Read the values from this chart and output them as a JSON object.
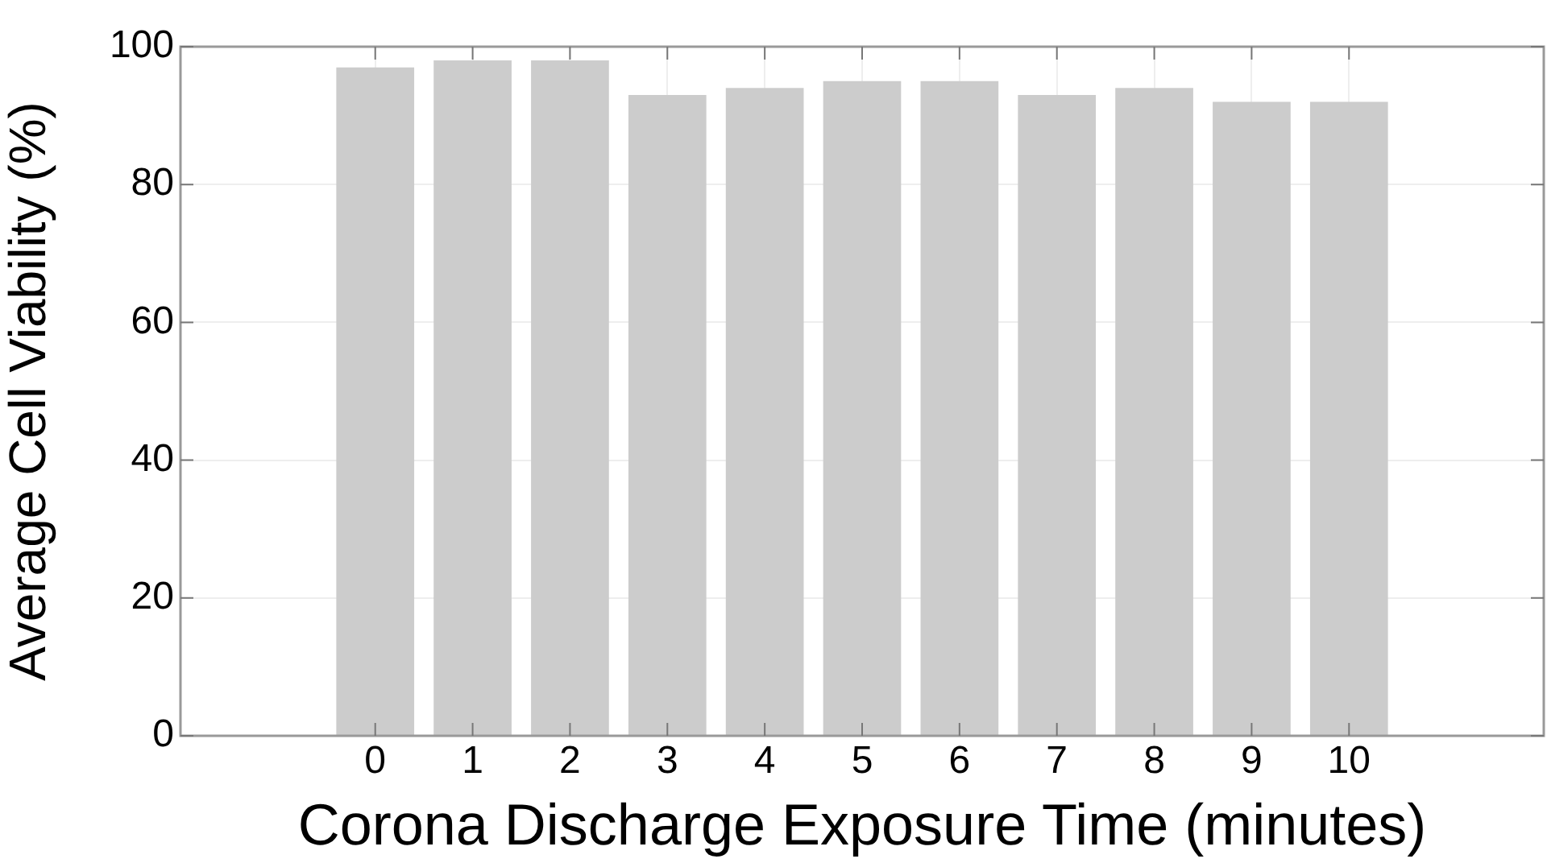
{
  "chart_data": {
    "type": "bar",
    "xlabel": "Corona Discharge Exposure Time (minutes)",
    "ylabel": "Average Cell Viability (%)",
    "x": [
      0,
      1,
      2,
      3,
      4,
      5,
      6,
      7,
      8,
      9,
      10
    ],
    "values": [
      97,
      98,
      98,
      93,
      94,
      95,
      95,
      93,
      94,
      92,
      92
    ],
    "color": "#cccccc",
    "xlim": [
      -2,
      12
    ],
    "xticks": [
      0,
      1,
      2,
      3,
      4,
      5,
      6,
      7,
      8,
      9,
      10
    ],
    "ylim": [
      0,
      100
    ],
    "yticks": [
      0,
      20,
      40,
      60,
      80,
      100
    ],
    "grid": true
  }
}
